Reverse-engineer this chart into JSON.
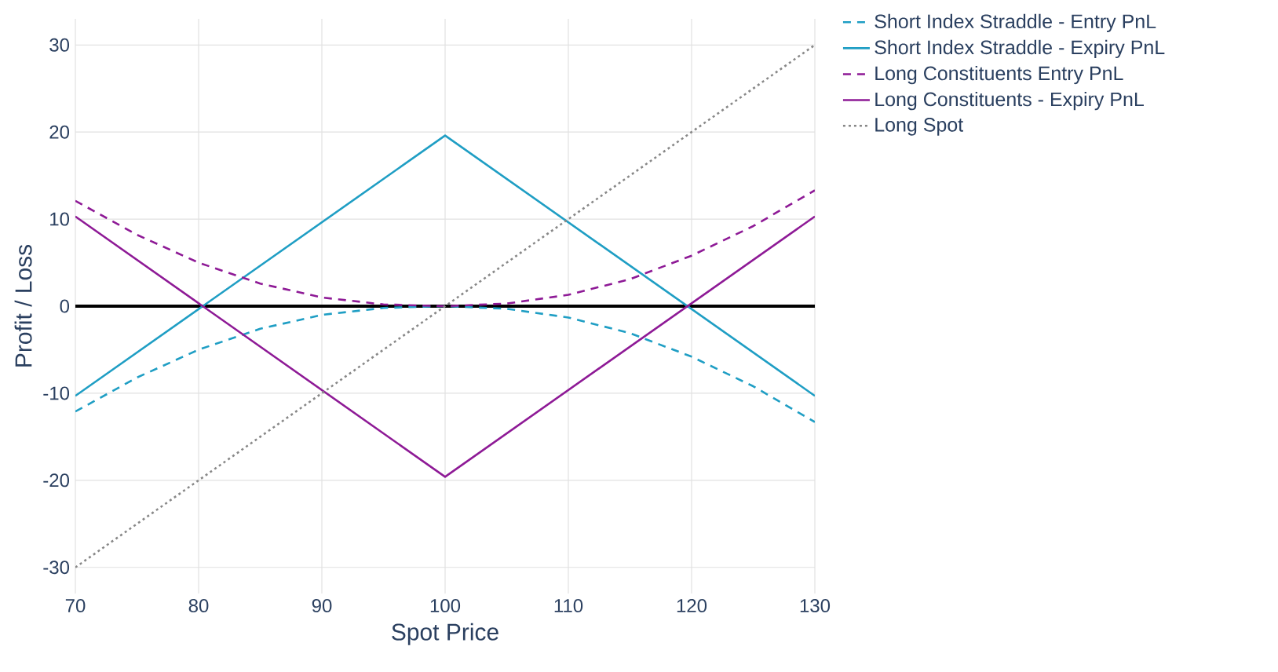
{
  "chart_data": {
    "type": "line",
    "xlabel": "Spot Price",
    "ylabel": "Profit / Loss",
    "xlim": [
      70,
      130
    ],
    "ylim": [
      -33,
      33
    ],
    "xticks": [
      70,
      80,
      90,
      100,
      110,
      120,
      130
    ],
    "yticks": [
      -30,
      -20,
      -10,
      0,
      10,
      20,
      30
    ],
    "grid": true,
    "legend": "top right",
    "ref_lines": [
      {
        "axis": "y",
        "value": 0,
        "color": "#000000"
      }
    ],
    "series": [
      {
        "name": "Short Index Straddle - Entry PnL",
        "color": "#1f9ec4",
        "line_style": "dashed",
        "x": [
          70,
          75,
          80,
          85,
          90,
          95,
          100,
          105,
          110,
          115,
          120,
          125,
          130
        ],
        "values": [
          -12.1,
          -8.2,
          -5.0,
          -2.6,
          -1.0,
          -0.2,
          0,
          -0.3,
          -1.3,
          -3.1,
          -5.8,
          -9.2,
          -13.3
        ]
      },
      {
        "name": "Short Index Straddle - Expiry PnL",
        "color": "#1f9ec4",
        "line_style": "solid",
        "x": [
          70,
          100,
          130
        ],
        "values": [
          -10.3,
          19.6,
          -10.3
        ]
      },
      {
        "name": "Long Constituents Entry PnL",
        "color": "#8e1a96",
        "line_style": "dashed",
        "x": [
          70,
          75,
          80,
          85,
          90,
          95,
          100,
          105,
          110,
          115,
          120,
          125,
          130
        ],
        "values": [
          12.1,
          8.2,
          5.0,
          2.6,
          1.0,
          0.2,
          0,
          0.3,
          1.3,
          3.1,
          5.8,
          9.2,
          13.3
        ]
      },
      {
        "name": "Long Constituents - Expiry PnL",
        "color": "#8e1a96",
        "line_style": "solid",
        "x": [
          70,
          100,
          130
        ],
        "values": [
          10.3,
          -19.6,
          10.3
        ]
      },
      {
        "name": "Long Spot",
        "color": "#888888",
        "line_style": "dotted",
        "x": [
          70,
          130
        ],
        "values": [
          -30,
          30
        ]
      }
    ]
  }
}
